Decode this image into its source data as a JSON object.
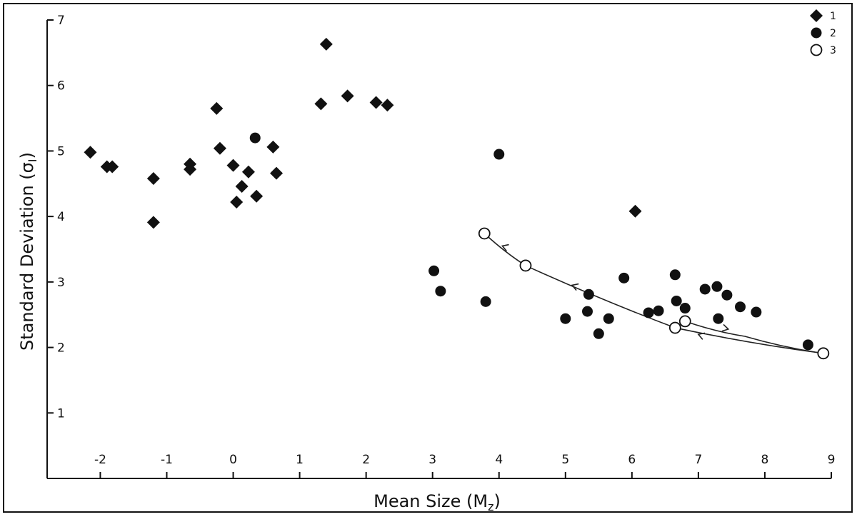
{
  "chart_data": {
    "type": "scatter",
    "title": "",
    "xlabel": "Mean Size (M",
    "xlabel_sub": "z",
    "xlabel_close": ")",
    "ylabel": "Standard Deviation (σ",
    "ylabel_sub": "I",
    "ylabel_close": ")",
    "xlim": [
      -2.8,
      9
    ],
    "ylim": [
      0,
      7
    ],
    "x_ticks": [
      -2,
      -1,
      0,
      1,
      2,
      3,
      4,
      5,
      6,
      7,
      8,
      9
    ],
    "y_ticks": [
      1,
      2,
      3,
      4,
      5,
      6,
      7
    ],
    "grid": false,
    "legend_position": "top-right",
    "series": [
      {
        "name": "1",
        "marker": "diamond-filled",
        "points": [
          [
            -2.15,
            4.98
          ],
          [
            -1.9,
            4.76
          ],
          [
            -1.82,
            4.76
          ],
          [
            -1.2,
            4.58
          ],
          [
            -1.2,
            3.91
          ],
          [
            -0.65,
            4.8
          ],
          [
            -0.65,
            4.72
          ],
          [
            -0.25,
            5.65
          ],
          [
            -0.2,
            5.04
          ],
          [
            0.0,
            4.78
          ],
          [
            0.05,
            4.22
          ],
          [
            0.13,
            4.46
          ],
          [
            0.23,
            4.68
          ],
          [
            0.35,
            4.31
          ],
          [
            0.6,
            5.06
          ],
          [
            0.65,
            4.66
          ],
          [
            1.32,
            5.72
          ],
          [
            1.4,
            6.63
          ],
          [
            1.72,
            5.84
          ],
          [
            2.15,
            5.74
          ],
          [
            2.32,
            5.7
          ],
          [
            6.05,
            4.08
          ]
        ]
      },
      {
        "name": "2",
        "marker": "circle-filled",
        "points": [
          [
            0.33,
            5.2
          ],
          [
            3.02,
            3.17
          ],
          [
            3.12,
            2.86
          ],
          [
            3.8,
            2.7
          ],
          [
            4.0,
            4.95
          ],
          [
            5.0,
            2.44
          ],
          [
            5.33,
            2.55
          ],
          [
            5.35,
            2.81
          ],
          [
            5.5,
            2.21
          ],
          [
            5.65,
            2.44
          ],
          [
            5.88,
            3.06
          ],
          [
            6.25,
            2.53
          ],
          [
            6.4,
            2.56
          ],
          [
            6.65,
            3.11
          ],
          [
            6.67,
            2.71
          ],
          [
            6.8,
            2.6
          ],
          [
            7.1,
            2.89
          ],
          [
            7.28,
            2.93
          ],
          [
            7.3,
            2.44
          ],
          [
            7.43,
            2.8
          ],
          [
            7.63,
            2.62
          ],
          [
            7.87,
            2.54
          ],
          [
            8.65,
            2.04
          ]
        ]
      },
      {
        "name": "3",
        "marker": "circle-open",
        "points": [
          [
            3.78,
            3.74
          ],
          [
            4.4,
            3.25
          ],
          [
            6.65,
            2.3
          ],
          [
            6.8,
            2.4
          ],
          [
            8.88,
            1.91
          ]
        ]
      }
    ],
    "trend_lines": [
      {
        "points": [
          [
            8.88,
            1.91
          ],
          [
            6.65,
            2.3
          ],
          [
            4.4,
            3.25
          ],
          [
            3.78,
            3.74
          ]
        ],
        "arrows_at": [
          [
            7.0,
            2.2
          ],
          [
            5.1,
            2.95
          ],
          [
            4.05,
            3.55
          ]
        ]
      },
      {
        "points": [
          [
            6.8,
            2.4
          ],
          [
            7.7,
            2.17
          ],
          [
            8.88,
            1.91
          ]
        ],
        "arrows_at": [
          [
            7.45,
            2.28
          ]
        ]
      }
    ]
  }
}
